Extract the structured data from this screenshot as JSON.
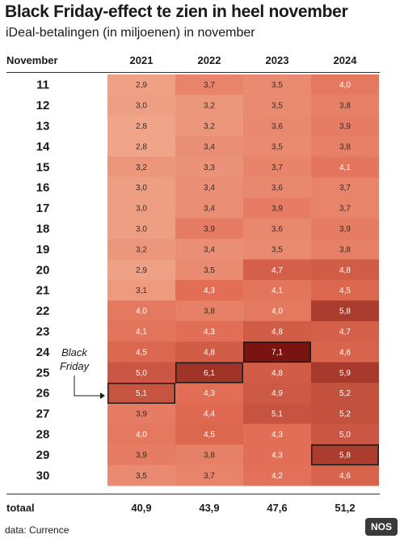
{
  "title": "Black Friday-effect te zien in heel november",
  "subtitle": "iDeal-betalingen (in miljoenen) in november",
  "source": "data: Currence",
  "logo": "NOS",
  "annotation": [
    "Black",
    "Friday"
  ],
  "colors": {
    "low": "#f0a58a",
    "mid": "#e06a51",
    "high": "#7a1410",
    "outline": "#1a1a1a"
  },
  "chart_data": {
    "type": "heatmap",
    "row_header": "November",
    "columns": [
      "2021",
      "2022",
      "2023",
      "2024"
    ],
    "rows": [
      "11",
      "12",
      "13",
      "14",
      "15",
      "16",
      "17",
      "18",
      "19",
      "20",
      "21",
      "22",
      "23",
      "24",
      "25",
      "26",
      "27",
      "28",
      "29",
      "30"
    ],
    "values": [
      [
        "2,9",
        "3,7",
        "3,5",
        "4,0"
      ],
      [
        "3,0",
        "3,2",
        "3,5",
        "3,8"
      ],
      [
        "2,8",
        "3,2",
        "3,6",
        "3,9"
      ],
      [
        "2,8",
        "3,4",
        "3,5",
        "3,8"
      ],
      [
        "3,2",
        "3,3",
        "3,7",
        "4,1"
      ],
      [
        "3,0",
        "3,4",
        "3,6",
        "3,7"
      ],
      [
        "3,0",
        "3,4",
        "3,9",
        "3,7"
      ],
      [
        "3,0",
        "3,9",
        "3,6",
        "3,9"
      ],
      [
        "3,2",
        "3,4",
        "3,5",
        "3,8"
      ],
      [
        "2,9",
        "3,5",
        "4,7",
        "4,8"
      ],
      [
        "3,1",
        "4,3",
        "4,1",
        "4,5"
      ],
      [
        "4,0",
        "3,8",
        "4,0",
        "5,8"
      ],
      [
        "4,1",
        "4,3",
        "4,8",
        "4,7"
      ],
      [
        "4,5",
        "4,8",
        "7,1",
        "4,6"
      ],
      [
        "5,0",
        "6,1",
        "4,8",
        "5,9"
      ],
      [
        "5,1",
        "4,3",
        "4,9",
        "5,2"
      ],
      [
        "3,9",
        "4,4",
        "5,1",
        "5,2"
      ],
      [
        "4,0",
        "4,5",
        "4,3",
        "5,0"
      ],
      [
        "3,9",
        "3,8",
        "4,3",
        "5,8"
      ],
      [
        "3,5",
        "3,7",
        "4,2",
        "4,6"
      ]
    ],
    "total_label": "totaal",
    "totals": [
      "40,9",
      "43,9",
      "47,6",
      "51,2"
    ],
    "black_friday": [
      {
        "year": "2021",
        "day": "26"
      },
      {
        "year": "2022",
        "day": "25"
      },
      {
        "year": "2023",
        "day": "24"
      },
      {
        "year": "2024",
        "day": "29"
      }
    ]
  }
}
